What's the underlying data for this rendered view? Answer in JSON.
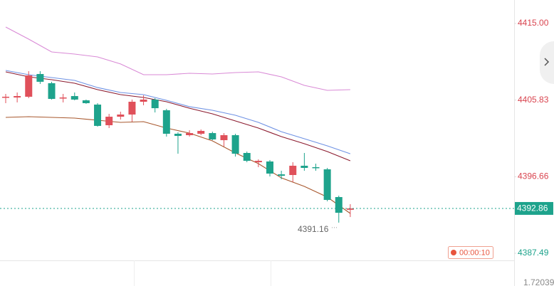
{
  "chart_data": {
    "type": "candlestick",
    "ylim": [
      4386.64,
      4417.81
    ],
    "yticks": [
      {
        "value": 4415,
        "label": "4415.00"
      },
      {
        "value": 4405.83,
        "label": "4405.83"
      },
      {
        "value": 4396.66,
        "label": "4396.66"
      },
      {
        "value": 4387.49,
        "label": "4387.49"
      }
    ],
    "up_color": "#e0505a",
    "down_color": "#1ea38c",
    "open": [
      4406.14,
      4406.14,
      4406.23,
      4408.95,
      4407.85,
      4406.06,
      4406.31,
      4405.8,
      4405.29,
      4402.82,
      4403.84,
      4404.1,
      4405.63,
      4405.89,
      4404.61,
      4401.8,
      4401.63,
      4401.8,
      4401.88,
      4401.03,
      4401.63,
      4399.5,
      4398.39,
      4398.48,
      4396.94,
      4396.86,
      4397.97,
      4397.8,
      4397.54,
      4394.22,
      4392.7
    ],
    "high": [
      4406.57,
      4406.74,
      4409.29,
      4409.29,
      4408.02,
      4406.57,
      4406.74,
      4405.89,
      4405.46,
      4404.18,
      4404.44,
      4405.89,
      4406.4,
      4406.06,
      4404.78,
      4401.97,
      4402.22,
      4402.31,
      4402.05,
      4401.88,
      4401.8,
      4399.67,
      4398.73,
      4398.65,
      4397.37,
      4398.39,
      4399.5,
      4398.22,
      4397.71,
      4394.39,
      4393.37
    ],
    "low": [
      4405.46,
      4405.55,
      4406.06,
      4407.76,
      4405.89,
      4405.55,
      4405.8,
      4405.38,
      4402.65,
      4402.48,
      4403.5,
      4403.25,
      4405.21,
      4404.35,
      4401.46,
      4399.41,
      4401.46,
      4401.63,
      4401.03,
      4400.27,
      4399.07,
      4398.39,
      4397.8,
      4396.69,
      4396.35,
      4396.01,
      4397.37,
      4397.37,
      4393.71,
      4391.16,
      4391.83
    ],
    "close": [
      4406.23,
      4406.31,
      4408.78,
      4408.02,
      4405.97,
      4406.14,
      4405.89,
      4405.46,
      4402.74,
      4403.84,
      4404.1,
      4405.63,
      4405.89,
      4404.86,
      4401.8,
      4401.54,
      4401.88,
      4402.14,
      4401.12,
      4401.63,
      4399.41,
      4398.56,
      4398.56,
      4397.03,
      4396.77,
      4397.97,
      4397.71,
      4397.71,
      4393.88,
      4392.34,
      4392.86
    ],
    "series": [
      {
        "color": "#d98ad6",
        "x": [
          0,
          2,
          4,
          6,
          8,
          10,
          12,
          14,
          16,
          18,
          20,
          22,
          24,
          26,
          28,
          30
        ],
        "values": [
          4414.57,
          4413.13,
          4411.59,
          4411.34,
          4411.0,
          4410.15,
          4408.87,
          4408.87,
          4409.04,
          4408.95,
          4409.12,
          4409.21,
          4408.61,
          4407.59,
          4406.99,
          4407.08
        ]
      },
      {
        "color": "#6f92e4",
        "x": [
          0,
          2,
          4,
          6,
          8,
          10,
          12,
          14,
          16,
          18,
          20,
          22,
          24,
          26,
          28,
          30
        ],
        "values": [
          4409.38,
          4408.87,
          4408.53,
          4408.19,
          4407.33,
          4406.74,
          4406.48,
          4405.8,
          4405.04,
          4404.61,
          4404.01,
          4403.16,
          4402.05,
          4401.2,
          4400.35,
          4399.41
        ]
      },
      {
        "color": "#8b1a2e",
        "x": [
          0,
          2,
          4,
          6,
          8,
          10,
          12,
          14,
          16,
          18,
          20,
          22,
          24,
          26,
          28,
          30
        ],
        "values": [
          4409.21,
          4408.61,
          4408.27,
          4407.85,
          4407.08,
          4406.48,
          4406.14,
          4405.63,
          4404.86,
          4404.18,
          4403.33,
          4402.48,
          4401.46,
          4400.61,
          4399.67,
          4398.56
        ]
      },
      {
        "color": "#a8582e",
        "x": [
          0,
          2,
          4,
          6,
          8,
          10,
          12,
          14,
          16,
          18,
          20,
          22,
          24,
          26,
          28,
          30
        ],
        "values": [
          4403.76,
          4403.84,
          4403.76,
          4403.67,
          4403.42,
          4403.16,
          4403.25,
          4402.48,
          4401.88,
          4400.95,
          4399.5,
          4398.22,
          4396.52,
          4395.5,
          4394.22,
          4392.26
        ]
      }
    ],
    "current_price": {
      "value": 4392.86,
      "label": "4392.86"
    },
    "low_marker": {
      "value": 4391.16,
      "label": "4391.16"
    },
    "countdown": "00:00:10",
    "bottom_value": "1.72039"
  }
}
